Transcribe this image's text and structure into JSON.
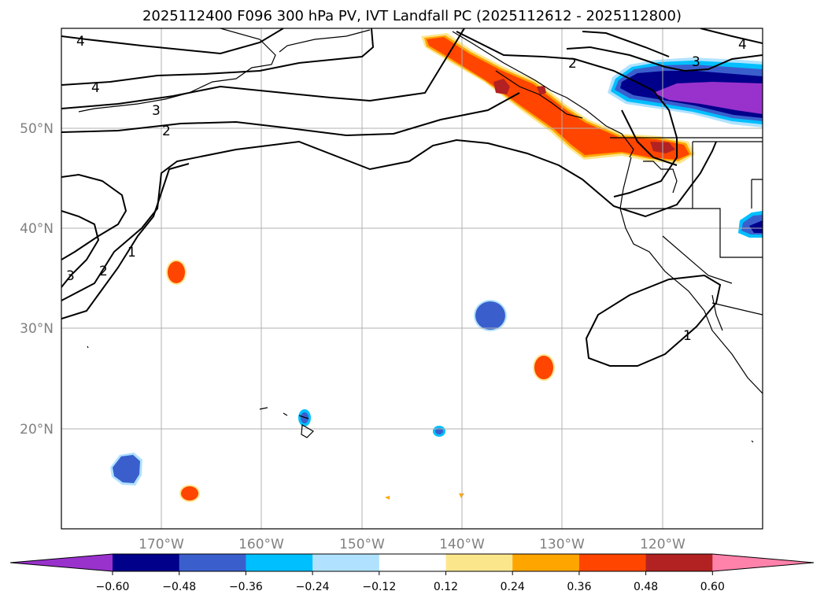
{
  "title": "2025112400 F096 300 hPa PV, IVT Landfall PC (2025112612 - 2025112800)",
  "axes": {
    "lon_ticks": [
      "170°W",
      "160°W",
      "150°W",
      "140°W",
      "130°W",
      "120°W"
    ],
    "lat_ticks": [
      "50°N",
      "40°N",
      "30°N",
      "20°N"
    ]
  },
  "contour_labels": [
    "4",
    "4",
    "3",
    "2",
    "1",
    "2",
    "3",
    "2",
    "3",
    "4",
    "1"
  ],
  "colorbar": {
    "ticks": [
      "−0.60",
      "−0.48",
      "−0.36",
      "−0.24",
      "−0.12",
      "0.12",
      "0.24",
      "0.36",
      "0.48",
      "0.60"
    ],
    "colors": [
      "#9932cc",
      "#00008b",
      "#3a5fcd",
      "#00bfff",
      "#b0e2ff",
      "#ffffff",
      "#fce68c",
      "#ffa500",
      "#ff4500",
      "#b22222",
      "#ff82ab"
    ]
  },
  "chart_data": {
    "type": "filled-contour-map",
    "title": "2025112400 F096 300 hPa PV, IVT Landfall PC (2025112612 - 2025112800)",
    "lon_range": [
      -180,
      -110
    ],
    "lat_range": [
      10,
      60
    ],
    "x_ticks": [
      "170°W",
      "160°W",
      "150°W",
      "140°W",
      "130°W",
      "120°W"
    ],
    "y_ticks": [
      "50°N",
      "40°N",
      "30°N",
      "20°N"
    ],
    "levels": [
      -0.6,
      -0.48,
      -0.36,
      -0.24,
      -0.12,
      0.12,
      0.24,
      0.36,
      0.48,
      0.6
    ],
    "pv_contour_levels": [
      1,
      2,
      3,
      4
    ],
    "grid": true
  }
}
